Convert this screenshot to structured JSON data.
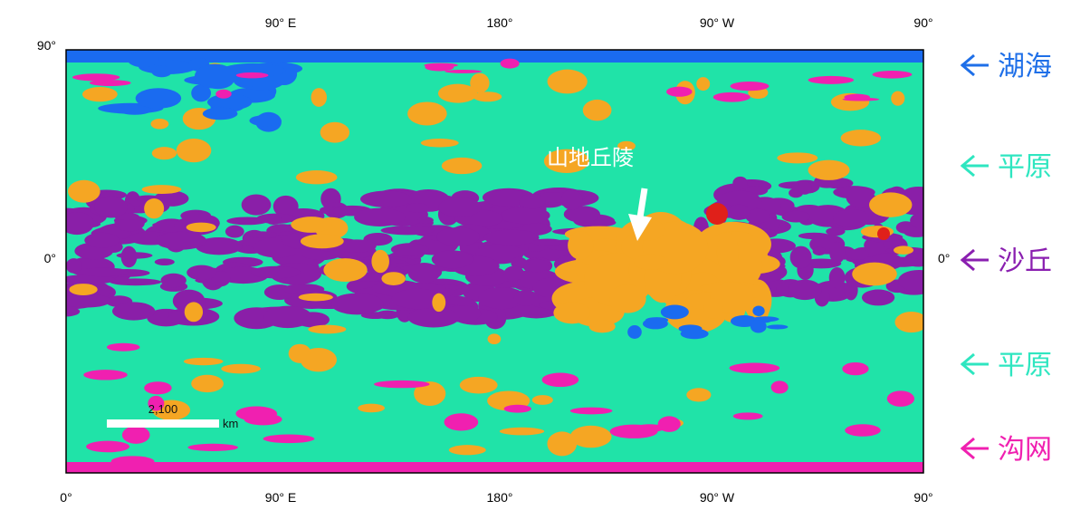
{
  "map": {
    "top_labels": [
      "90° E",
      "180°",
      "90° W",
      "90°"
    ],
    "bottom_labels": [
      "0°",
      "90° E",
      "180°",
      "90° W",
      "90°"
    ],
    "left_labels": [
      "90°",
      "0°"
    ],
    "right_labels": [
      "0°"
    ],
    "annotation": "山地丘陵",
    "scale_bar": {
      "value": "2,100",
      "unit": "km"
    },
    "legend": [
      {
        "label": "湖海",
        "color": "#1e6fe8"
      },
      {
        "label": "平原",
        "color": "#2ee6c0"
      },
      {
        "label": "沙丘",
        "color": "#8a1fb0"
      },
      {
        "label": "平原",
        "color": "#2ee6c0"
      },
      {
        "label": "沟网",
        "color": "#f020b0"
      }
    ]
  }
}
